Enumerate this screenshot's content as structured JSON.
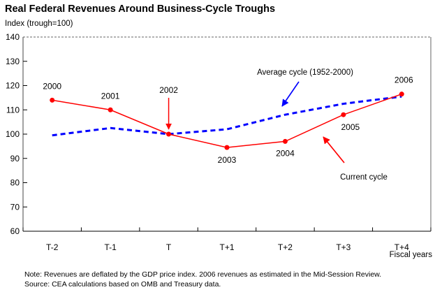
{
  "chart_data": {
    "type": "line",
    "title": "Real Federal Revenues Around Business-Cycle Troughs",
    "ylabel": "Index (trough=100)",
    "xlabel": "Fiscal years",
    "categories": [
      "T-2",
      "T-1",
      "T",
      "T+1",
      "T+2",
      "T+3",
      "T+4"
    ],
    "y_ticks": [
      140,
      130,
      120,
      110,
      100,
      90,
      80,
      70,
      60
    ],
    "ylim": [
      60,
      140
    ],
    "grid": false,
    "legend_position": "in-plot annotations with arrows",
    "series": [
      {
        "name": "Average cycle (1952-2000)",
        "style": "dashed",
        "color": "#0000ff",
        "values": [
          99.5,
          102.5,
          100,
          102,
          108,
          112.5,
          115.5
        ]
      },
      {
        "name": "Current cycle",
        "style": "solid-with-markers",
        "color": "#ff0000",
        "values": [
          114,
          110,
          100,
          94.5,
          97,
          108,
          116.5
        ],
        "point_labels": [
          "2000",
          "2001",
          "2002",
          "2003",
          "2004",
          "2005",
          "2006"
        ]
      }
    ]
  },
  "colors": {
    "average": "#0000ff",
    "current": "#ff0000",
    "axis": "#666666",
    "text": "#000000"
  },
  "notes": {
    "line1": "Note: Revenues are deflated by the GDP price index.  2006 revenues as estimated in the Mid-Session Review.",
    "line2": "Source: CEA calculations based on OMB and Treasury data."
  }
}
